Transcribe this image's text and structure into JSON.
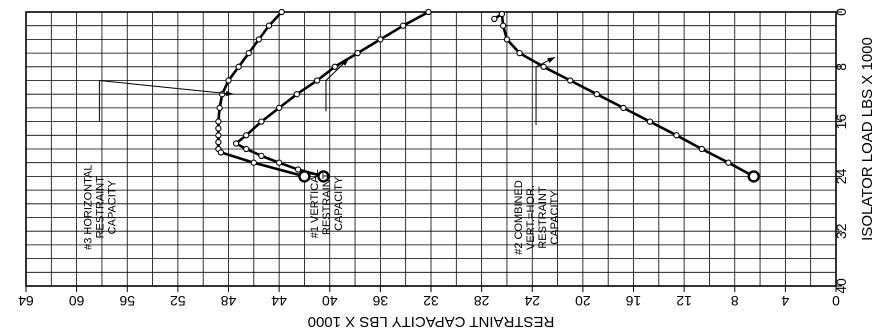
{
  "chart_data": {
    "type": "line",
    "xlabel": "RESTRAINT CAPACITY LBS X 1000",
    "ylabel": "ISOLATOR LOAD LBS X 1000",
    "xlim": [
      64,
      0
    ],
    "ylim": [
      0,
      40
    ],
    "x_reversed": true,
    "x_ticks": [
      64,
      60,
      56,
      52,
      48,
      44,
      40,
      36,
      32,
      28,
      24,
      20,
      16,
      12,
      8,
      4,
      0
    ],
    "y_ticks": [
      0,
      8,
      16,
      24,
      32,
      40
    ],
    "y_tick_labels": [
      "0",
      "8",
      "16",
      "24",
      "32",
      "40"
    ],
    "grid": true,
    "text_rotation": "page rotated 180 degrees",
    "series": [
      {
        "id": "s1",
        "x": [
          32.2,
          34.2,
          36.0,
          37.8,
          39.6,
          41.0,
          42.6,
          44.0,
          45.4,
          46.6,
          47.4,
          46.6,
          45.4,
          44.0,
          42.5,
          40.5
        ],
        "y": [
          0,
          2,
          4,
          6,
          8,
          10,
          12,
          14,
          16,
          18,
          19.2,
          20,
          21,
          22,
          23,
          24
        ]
      },
      {
        "id": "s2",
        "x": [
          6.5,
          8.5,
          10.6,
          12.6,
          14.7,
          16.8,
          18.9,
          21.0,
          23.1,
          25.0,
          26.0,
          26.3,
          26.4,
          27.0
        ],
        "y": [
          24,
          22,
          20,
          18,
          16,
          14,
          12,
          10,
          8,
          6,
          4,
          2,
          0.3,
          1
        ]
      },
      {
        "id": "s3",
        "x": [
          43.8,
          44.8,
          45.6,
          46.4,
          47.2,
          48.0,
          48.5,
          48.7,
          48.8,
          48.8,
          48.8,
          48.8,
          48.8,
          48.6,
          46.0,
          42.0
        ],
        "y": [
          0,
          2,
          4,
          6,
          8,
          10,
          12,
          14,
          16,
          17,
          18,
          19,
          20,
          20.5,
          22,
          24
        ]
      }
    ],
    "annotations": [
      {
        "id": "a1",
        "lines": [
          "#1 VERTICAL",
          "RESTRAINT",
          "CAPACITY"
        ]
      },
      {
        "id": "a2",
        "lines": [
          "#2 COMBINED",
          "VERT.=HOR.",
          "RESTRAINT",
          "CAPACITY"
        ]
      },
      {
        "id": "a3",
        "lines": [
          "#3 HORIZONTAL",
          "RESTRAINT",
          "CAPACITY"
        ]
      }
    ]
  }
}
